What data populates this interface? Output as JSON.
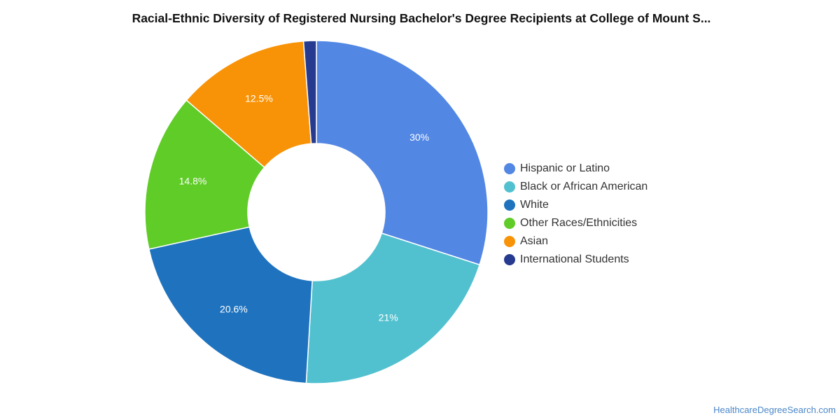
{
  "chart_data": {
    "type": "pie",
    "title": "Racial-Ethnic Diversity of Registered Nursing Bachelor's Degree Recipients at College of Mount S...",
    "donut": true,
    "legend_position": "right",
    "slices": [
      {
        "name": "Hispanic or Latino",
        "value": 30,
        "label": "30%",
        "color": "#5287e4"
      },
      {
        "name": "Black or African American",
        "value": 21,
        "label": "21%",
        "color": "#52c1cf"
      },
      {
        "name": "White",
        "value": 20.6,
        "label": "20.6%",
        "color": "#1f73be"
      },
      {
        "name": "Other Races/Ethnicities",
        "value": 14.8,
        "label": "14.8%",
        "color": "#5fcc27"
      },
      {
        "name": "Asian",
        "value": 12.5,
        "label": "12.5%",
        "color": "#f89307"
      },
      {
        "name": "International Students",
        "value": 1.2,
        "label": "",
        "color": "#263b8f"
      }
    ]
  },
  "footer": {
    "source": "HealthcareDegreeSearch.com"
  }
}
